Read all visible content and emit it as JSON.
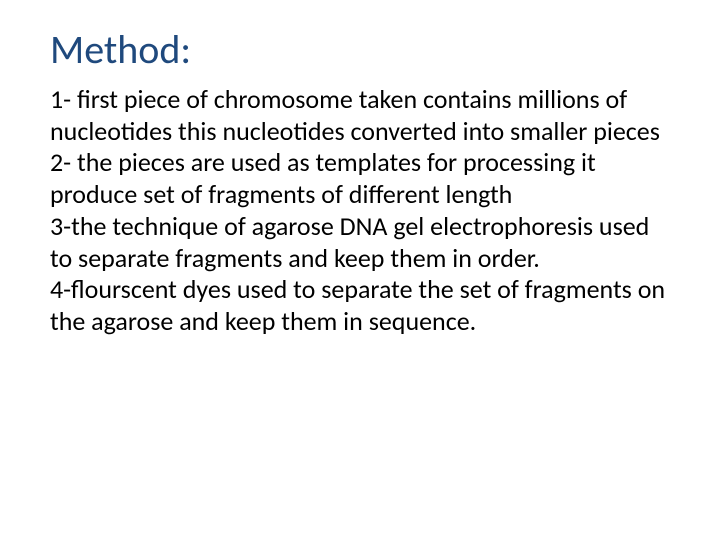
{
  "slide": {
    "title": "Method:",
    "title_color": "#1f497d",
    "title_fontsize": 40,
    "body_fontsize": 26,
    "body_color": "#000000",
    "background_color": "#ffffff",
    "items": [
      "1- first piece of chromosome taken contains millions of nucleotides this nucleotides converted into smaller pieces",
      "2- the pieces are used as templates for processing it produce set of fragments of different length",
      "3-the technique of agarose DNA gel electrophoresis used to separate fragments and keep them in order.",
      "4-flourscent dyes used to separate the set of fragments on the agarose and keep them in sequence."
    ]
  }
}
